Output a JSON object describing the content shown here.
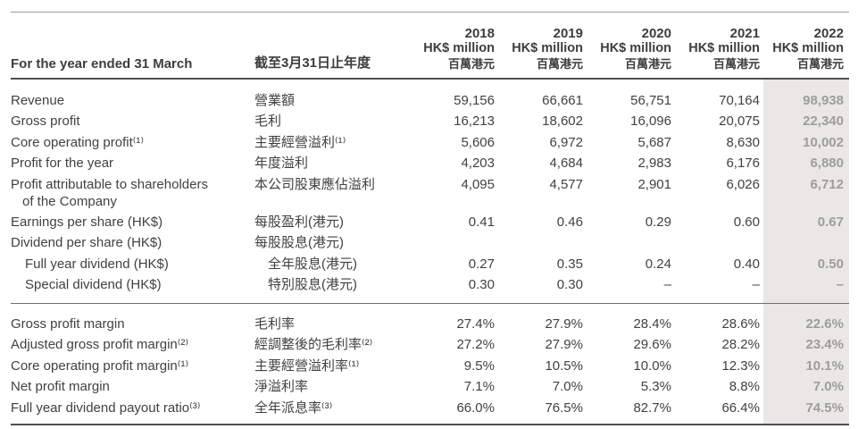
{
  "table": {
    "header": {
      "row_label_en": "For the year ended 31 March",
      "row_label_zh": "截至3月31日止年度",
      "years": [
        {
          "year": "2018",
          "unit_en": "HK$ million",
          "unit_zh": "百萬港元"
        },
        {
          "year": "2019",
          "unit_en": "HK$ million",
          "unit_zh": "百萬港元"
        },
        {
          "year": "2020",
          "unit_en": "HK$ million",
          "unit_zh": "百萬港元"
        },
        {
          "year": "2021",
          "unit_en": "HK$ million",
          "unit_zh": "百萬港元"
        },
        {
          "year": "2022",
          "unit_en": "HK$ million",
          "unit_zh": "百萬港元"
        }
      ]
    },
    "sections": [
      {
        "rows": [
          {
            "en": "Revenue",
            "zh": "營業額",
            "values": [
              "59,156",
              "66,661",
              "56,751",
              "70,164",
              "98,938"
            ]
          },
          {
            "en": "Gross profit",
            "zh": "毛利",
            "values": [
              "16,213",
              "18,602",
              "16,096",
              "20,075",
              "22,340"
            ]
          },
          {
            "en": "Core operating profit⁽¹⁾",
            "zh": "主要經營溢利⁽¹⁾",
            "values": [
              "5,606",
              "6,972",
              "5,687",
              "8,630",
              "10,002"
            ]
          },
          {
            "en": "Profit for the year",
            "zh": "年度溢利",
            "values": [
              "4,203",
              "4,684",
              "2,983",
              "6,176",
              "6,880"
            ]
          },
          {
            "en": "Profit attributable to shareholders",
            "en2": "of the Company",
            "zh": "本公司股東應佔溢利",
            "values": [
              "4,095",
              "4,577",
              "2,901",
              "6,026",
              "6,712"
            ]
          },
          {
            "en": "Earnings per share (HK$)",
            "zh": "每股盈利(港元)",
            "values": [
              "0.41",
              "0.46",
              "0.29",
              "0.60",
              "0.67"
            ]
          },
          {
            "en": "Dividend per share (HK$)",
            "zh": "每股股息(港元)",
            "values": [
              "",
              "",
              "",
              "",
              ""
            ]
          },
          {
            "en": "Full year dividend (HK$)",
            "zh": "全年股息(港元)",
            "indent": true,
            "values": [
              "0.27",
              "0.35",
              "0.24",
              "0.40",
              "0.50"
            ]
          },
          {
            "en": "Special dividend (HK$)",
            "zh": "特別股息(港元)",
            "indent": true,
            "values": [
              "0.30",
              "0.30",
              "–",
              "–",
              "–"
            ]
          }
        ]
      },
      {
        "rows": [
          {
            "en": "Gross profit margin",
            "zh": "毛利率",
            "values": [
              "27.4%",
              "27.9%",
              "28.4%",
              "28.6%",
              "22.6%"
            ]
          },
          {
            "en": "Adjusted gross profit margin⁽²⁾",
            "zh": "經調整後的毛利率⁽²⁾",
            "values": [
              "27.2%",
              "27.9%",
              "29.6%",
              "28.2%",
              "23.4%"
            ]
          },
          {
            "en": "Core operating profit margin⁽¹⁾",
            "zh": "主要經營溢利率⁽¹⁾",
            "values": [
              "9.5%",
              "10.5%",
              "10.0%",
              "12.3%",
              "10.1%"
            ]
          },
          {
            "en": "Net profit margin",
            "zh": "淨溢利率",
            "values": [
              "7.1%",
              "7.0%",
              "5.3%",
              "8.8%",
              "7.0%"
            ]
          },
          {
            "en": "Full year dividend payout ratio⁽³⁾",
            "zh": "全年派息率⁽³⁾",
            "values": [
              "66.0%",
              "76.5%",
              "82.7%",
              "66.4%",
              "74.5%"
            ]
          }
        ]
      }
    ],
    "colors": {
      "text": "#414141",
      "highlight_background": "#e9e8e4",
      "highlight_text": "#9d9d9b",
      "rule_heavy": "#4f4f4f",
      "rule_light": "#9a9a9a"
    }
  }
}
